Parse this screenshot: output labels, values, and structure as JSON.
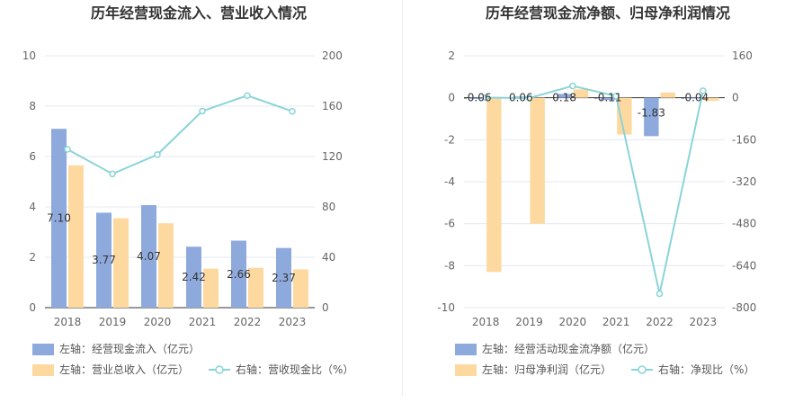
{
  "chart_data": [
    {
      "type": "bar",
      "title": "历年经营现金流入、营业收入情况",
      "categories": [
        "2018",
        "2019",
        "2020",
        "2021",
        "2022",
        "2023"
      ],
      "left_axis": {
        "min": 0,
        "max": 10,
        "ticks": [
          "0",
          "2",
          "4",
          "6",
          "8",
          "10"
        ]
      },
      "right_axis": {
        "min": 0,
        "max": 200,
        "ticks": [
          "0",
          "40",
          "80",
          "120",
          "160",
          "200"
        ]
      },
      "series": [
        {
          "name": "左轴：经营现金流入（亿元）",
          "type": "bar",
          "axis": "left",
          "color": "#8eaadc",
          "values": [
            7.1,
            3.77,
            4.07,
            2.42,
            2.66,
            2.37
          ],
          "labels": [
            "7.10",
            "3.77",
            "4.07",
            "2.42",
            "2.66",
            "2.37"
          ]
        },
        {
          "name": "左轴：营业总收入（亿元）",
          "type": "bar",
          "axis": "left",
          "color": "#fdd9a0",
          "values": [
            5.65,
            3.55,
            3.35,
            1.55,
            1.58,
            1.52
          ]
        },
        {
          "name": "右轴：营收现金比（%）",
          "type": "line",
          "axis": "right",
          "color": "#8ad4d8",
          "values": [
            125.7,
            106.2,
            121.5,
            156.1,
            168.4,
            155.9
          ]
        }
      ],
      "grid": true,
      "legend": "bottom"
    },
    {
      "type": "bar",
      "title": "历年经营现金流净额、归母净利润情况",
      "categories": [
        "2018",
        "2019",
        "2020",
        "2021",
        "2022",
        "2023"
      ],
      "left_axis": {
        "min": -10,
        "max": 2,
        "ticks": [
          "-10",
          "-8",
          "-6",
          "-4",
          "-2",
          "0",
          "2"
        ]
      },
      "right_axis": {
        "min": -800,
        "max": 160,
        "ticks": [
          "-800",
          "-640",
          "-480",
          "-320",
          "-160",
          "0",
          "160"
        ]
      },
      "series": [
        {
          "name": "左轴：经营活动现金流净额（亿元）",
          "type": "bar",
          "axis": "left",
          "color": "#8eaadc",
          "values": [
            -0.06,
            0.06,
            0.18,
            -0.11,
            -1.83,
            -0.04
          ],
          "labels": [
            "-0.06",
            "0.06",
            "0.18",
            "-0.11",
            "-1.83",
            "-0.04"
          ]
        },
        {
          "name": "左轴：归母净利润（亿元）",
          "type": "bar",
          "axis": "left",
          "color": "#fdd9a0",
          "values": [
            -8.3,
            -6.0,
            0.4,
            -1.75,
            0.25,
            -0.15
          ]
        },
        {
          "name": "右轴：净现比（%）",
          "type": "line",
          "axis": "right",
          "color": "#8ad4d8",
          "values": [
            0.7,
            -1.0,
            45.0,
            6.3,
            -747.0,
            26.7
          ]
        }
      ],
      "grid": true,
      "legend": "bottom"
    }
  ]
}
